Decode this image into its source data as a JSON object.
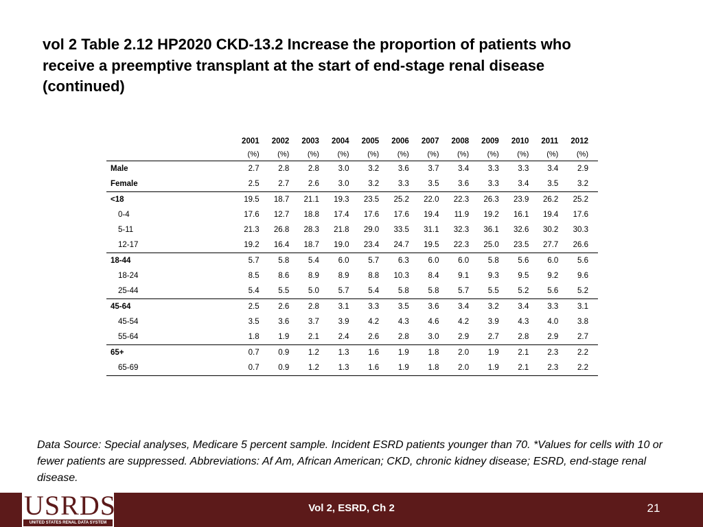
{
  "title": "vol 2 Table 2.12  HP2020 CKD-13.2 Increase the proportion of patients who receive a preemptive transplant at the start of end-stage renal disease (continued)",
  "table": {
    "years": [
      "2001",
      "2002",
      "2003",
      "2004",
      "2005",
      "2006",
      "2007",
      "2008",
      "2009",
      "2010",
      "2011",
      "2012"
    ],
    "unit": "(%)",
    "rows": [
      {
        "label": "Male",
        "bold": true,
        "indent": false,
        "sep": false,
        "values": [
          "2.7",
          "2.8",
          "2.8",
          "3.0",
          "3.2",
          "3.6",
          "3.7",
          "3.4",
          "3.3",
          "3.3",
          "3.4",
          "2.9"
        ]
      },
      {
        "label": "Female",
        "bold": true,
        "indent": false,
        "sep": false,
        "values": [
          "2.5",
          "2.7",
          "2.6",
          "3.0",
          "3.2",
          "3.3",
          "3.5",
          "3.6",
          "3.3",
          "3.4",
          "3.5",
          "3.2"
        ]
      },
      {
        "label": "<18",
        "bold": true,
        "indent": false,
        "sep": true,
        "values": [
          "19.5",
          "18.7",
          "21.1",
          "19.3",
          "23.5",
          "25.2",
          "22.0",
          "22.3",
          "26.3",
          "23.9",
          "26.2",
          "25.2"
        ]
      },
      {
        "label": "0-4",
        "bold": false,
        "indent": true,
        "sep": false,
        "values": [
          "17.6",
          "12.7",
          "18.8",
          "17.4",
          "17.6",
          "17.6",
          "19.4",
          "11.9",
          "19.2",
          "16.1",
          "19.4",
          "17.6"
        ]
      },
      {
        "label": "5-11",
        "bold": false,
        "indent": true,
        "sep": false,
        "values": [
          "21.3",
          "26.8",
          "28.3",
          "21.8",
          "29.0",
          "33.5",
          "31.1",
          "32.3",
          "36.1",
          "32.6",
          "30.2",
          "30.3"
        ]
      },
      {
        "label": "12-17",
        "bold": false,
        "indent": true,
        "sep": false,
        "values": [
          "19.2",
          "16.4",
          "18.7",
          "19.0",
          "23.4",
          "24.7",
          "19.5",
          "22.3",
          "25.0",
          "23.5",
          "27.7",
          "26.6"
        ]
      },
      {
        "label": "18-44",
        "bold": true,
        "indent": false,
        "sep": true,
        "values": [
          "5.7",
          "5.8",
          "5.4",
          "6.0",
          "5.7",
          "6.3",
          "6.0",
          "6.0",
          "5.8",
          "5.6",
          "6.0",
          "5.6"
        ]
      },
      {
        "label": "18-24",
        "bold": false,
        "indent": true,
        "sep": false,
        "values": [
          "8.5",
          "8.6",
          "8.9",
          "8.9",
          "8.8",
          "10.3",
          "8.4",
          "9.1",
          "9.3",
          "9.5",
          "9.2",
          "9.6"
        ]
      },
      {
        "label": "25-44",
        "bold": false,
        "indent": true,
        "sep": false,
        "values": [
          "5.4",
          "5.5",
          "5.0",
          "5.7",
          "5.4",
          "5.8",
          "5.8",
          "5.7",
          "5.5",
          "5.2",
          "5.6",
          "5.2"
        ]
      },
      {
        "label": "45-64",
        "bold": true,
        "indent": false,
        "sep": true,
        "values": [
          "2.5",
          "2.6",
          "2.8",
          "3.1",
          "3.3",
          "3.5",
          "3.6",
          "3.4",
          "3.2",
          "3.4",
          "3.3",
          "3.1"
        ]
      },
      {
        "label": "45-54",
        "bold": false,
        "indent": true,
        "sep": false,
        "values": [
          "3.5",
          "3.6",
          "3.7",
          "3.9",
          "4.2",
          "4.3",
          "4.6",
          "4.2",
          "3.9",
          "4.3",
          "4.0",
          "3.8"
        ]
      },
      {
        "label": "55-64",
        "bold": false,
        "indent": true,
        "sep": false,
        "values": [
          "1.8",
          "1.9",
          "2.1",
          "2.4",
          "2.6",
          "2.8",
          "3.0",
          "2.9",
          "2.7",
          "2.8",
          "2.9",
          "2.7"
        ]
      },
      {
        "label": "65+",
        "bold": true,
        "indent": false,
        "sep": true,
        "values": [
          "0.7",
          "0.9",
          "1.2",
          "1.3",
          "1.6",
          "1.9",
          "1.8",
          "2.0",
          "1.9",
          "2.1",
          "2.3",
          "2.2"
        ]
      },
      {
        "label": "65-69",
        "bold": false,
        "indent": true,
        "sep": false,
        "values": [
          "0.7",
          "0.9",
          "1.2",
          "1.3",
          "1.6",
          "1.9",
          "1.8",
          "2.0",
          "1.9",
          "2.1",
          "2.3",
          "2.2"
        ]
      }
    ]
  },
  "source": "Data Source: Special analyses, Medicare 5 percent sample. Incident ESRD patients younger than 70. *Values for cells with 10 or fewer patients are suppressed. Abbreviations: Af Am, African American; CKD, chronic kidney disease; ESRD, end-stage renal disease.",
  "footer": {
    "logo_text": "USRDS",
    "logo_subtitle": "UNITED STATES RENAL DATA SYSTEM",
    "center_text": "Vol 2, ESRD, Ch 2",
    "page_number": "21"
  },
  "colors": {
    "footer_bg": "#5c1a1a",
    "logo_color": "#5c1a1a"
  }
}
